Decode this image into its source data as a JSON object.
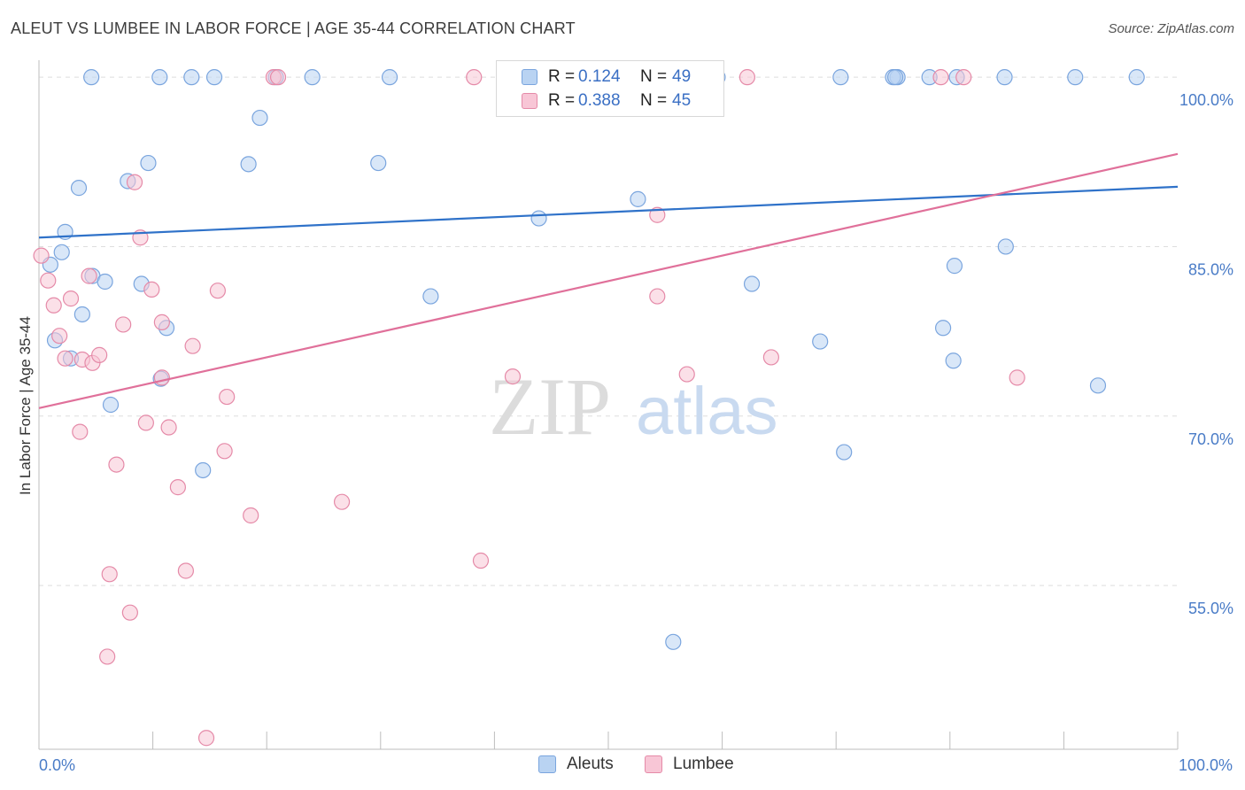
{
  "header": {
    "title": "ALEUT VS LUMBEE IN LABOR FORCE | AGE 35-44 CORRELATION CHART",
    "source": "Source: ZipAtlas.com"
  },
  "watermark": {
    "zip": "ZIP",
    "atlas": "atlas"
  },
  "legend": {
    "rows": [
      {
        "r_label": "R =",
        "r_value": "0.124",
        "n_label": "N =",
        "n_value": "49"
      },
      {
        "r_label": "R =",
        "r_value": "0.388",
        "n_label": "N =",
        "n_value": "45"
      }
    ]
  },
  "bottom_legend": {
    "aleuts": "Aleuts",
    "lumbee": "Lumbee"
  },
  "colors": {
    "aleut_fill": "#b9d3f2",
    "aleut_stroke": "#7aa5de",
    "aleut_line": "#2f72c9",
    "lumbee_fill": "#f8c6d6",
    "lumbee_stroke": "#e58aa8",
    "lumbee_line": "#e0709a",
    "grid": "#dedede",
    "tick_label": "#4a7cc7"
  },
  "chart_data": {
    "type": "scatter",
    "title": "ALEUT VS LUMBEE IN LABOR FORCE | AGE 35-44 CORRELATION CHART",
    "xlabel": "",
    "ylabel": "In Labor Force | Age 35-44",
    "xlim": [
      0,
      100
    ],
    "ylim": [
      40.5,
      101.5
    ],
    "y_ticks": [
      {
        "value": 55,
        "label": "55.0%"
      },
      {
        "value": 70,
        "label": "70.0%"
      },
      {
        "value": 85,
        "label": "85.0%"
      },
      {
        "value": 100,
        "label": "100.0%"
      }
    ],
    "x_ticks": [
      {
        "value": 0,
        "label": "0.0%"
      },
      {
        "value": 100,
        "label": "100.0%"
      }
    ],
    "x_minor_ticks": [
      0,
      10,
      20,
      30,
      40,
      50,
      60,
      70,
      80,
      90,
      100
    ],
    "grid": true,
    "legend_position": "top-center",
    "series": [
      {
        "name": "Aleuts",
        "r": 0.124,
        "n": 49,
        "trend": {
          "x": [
            0,
            100
          ],
          "y": [
            85.8,
            90.3
          ]
        },
        "points": [
          [
            4.6,
            100
          ],
          [
            10.6,
            100
          ],
          [
            13.4,
            100
          ],
          [
            15.4,
            100
          ],
          [
            20.8,
            100
          ],
          [
            24.0,
            100
          ],
          [
            30.8,
            100
          ],
          [
            56.2,
            100
          ],
          [
            59.6,
            100
          ],
          [
            75.4,
            100
          ],
          [
            78.2,
            100
          ],
          [
            80.6,
            100
          ],
          [
            75.0,
            100
          ],
          [
            84.8,
            100
          ],
          [
            91.0,
            100
          ],
          [
            96.4,
            100
          ],
          [
            70.4,
            100
          ],
          [
            75.2,
            100
          ],
          [
            19.4,
            96.4
          ],
          [
            9.6,
            92.4
          ],
          [
            18.4,
            92.3
          ],
          [
            29.8,
            92.4
          ],
          [
            3.5,
            90.2
          ],
          [
            7.8,
            90.8
          ],
          [
            52.6,
            89.2
          ],
          [
            43.9,
            87.5
          ],
          [
            2.3,
            86.3
          ],
          [
            2.0,
            84.5
          ],
          [
            1.0,
            83.4
          ],
          [
            84.9,
            85.0
          ],
          [
            80.4,
            83.3
          ],
          [
            4.7,
            82.4
          ],
          [
            5.8,
            81.9
          ],
          [
            9.0,
            81.7
          ],
          [
            62.6,
            81.7
          ],
          [
            34.4,
            80.6
          ],
          [
            3.8,
            79.0
          ],
          [
            11.2,
            77.8
          ],
          [
            79.4,
            77.8
          ],
          [
            1.4,
            76.7
          ],
          [
            68.6,
            76.6
          ],
          [
            2.8,
            75.1
          ],
          [
            80.3,
            74.9
          ],
          [
            10.7,
            73.3
          ],
          [
            93.0,
            72.7
          ],
          [
            6.3,
            71.0
          ],
          [
            70.7,
            66.8
          ],
          [
            14.4,
            65.2
          ],
          [
            55.7,
            50.0
          ]
        ]
      },
      {
        "name": "Lumbee",
        "r": 0.388,
        "n": 45,
        "trend": {
          "x": [
            0,
            100
          ],
          "y": [
            70.7,
            93.2
          ]
        },
        "points": [
          [
            20.6,
            100
          ],
          [
            21.0,
            100
          ],
          [
            38.2,
            100
          ],
          [
            62.2,
            100
          ],
          [
            79.2,
            100
          ],
          [
            81.2,
            100
          ],
          [
            8.4,
            90.7
          ],
          [
            54.3,
            87.8
          ],
          [
            8.9,
            85.8
          ],
          [
            0.2,
            84.2
          ],
          [
            0.8,
            82.0
          ],
          [
            4.4,
            82.4
          ],
          [
            1.3,
            79.8
          ],
          [
            2.8,
            80.4
          ],
          [
            9.9,
            81.2
          ],
          [
            15.7,
            81.1
          ],
          [
            54.3,
            80.6
          ],
          [
            7.4,
            78.1
          ],
          [
            10.8,
            78.3
          ],
          [
            1.8,
            77.1
          ],
          [
            13.5,
            76.2
          ],
          [
            64.3,
            75.2
          ],
          [
            2.3,
            75.1
          ],
          [
            3.8,
            75.0
          ],
          [
            4.7,
            74.7
          ],
          [
            5.3,
            75.4
          ],
          [
            10.8,
            73.4
          ],
          [
            41.6,
            73.5
          ],
          [
            56.9,
            73.7
          ],
          [
            85.9,
            73.4
          ],
          [
            16.5,
            71.7
          ],
          [
            9.4,
            69.4
          ],
          [
            11.4,
            69.0
          ],
          [
            3.6,
            68.6
          ],
          [
            16.3,
            66.9
          ],
          [
            6.8,
            65.7
          ],
          [
            12.2,
            63.7
          ],
          [
            26.6,
            62.4
          ],
          [
            18.6,
            61.2
          ],
          [
            38.8,
            57.2
          ],
          [
            6.2,
            56.0
          ],
          [
            12.9,
            56.3
          ],
          [
            8.0,
            52.6
          ],
          [
            6.0,
            48.7
          ],
          [
            14.7,
            41.5
          ]
        ]
      }
    ]
  }
}
